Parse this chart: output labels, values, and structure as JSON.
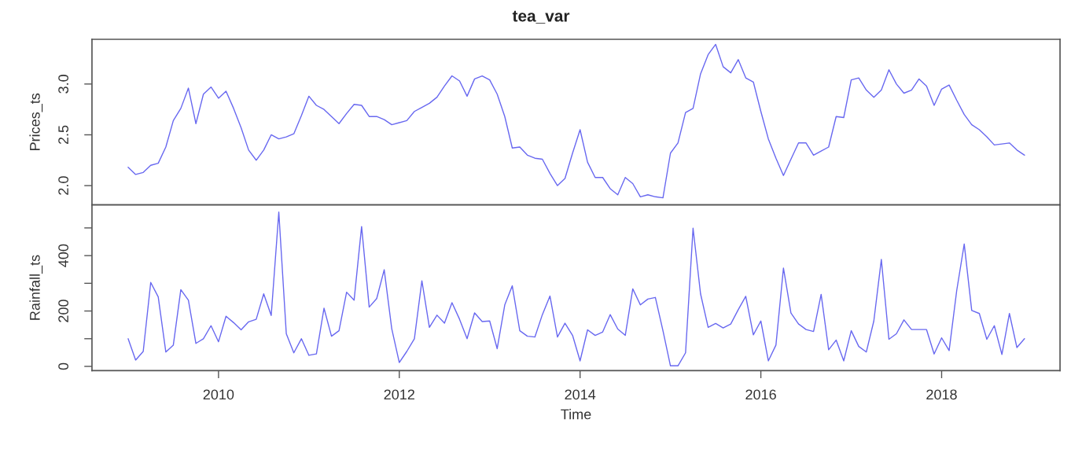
{
  "chart_data": [
    {
      "type": "line",
      "title": "tea_var",
      "ylabel": "Prices_ts",
      "tick_labels": "y",
      "x": [
        2009,
        2009.083,
        2009.167,
        2009.25,
        2009.333,
        2009.417,
        2009.5,
        2009.583,
        2009.667,
        2009.75,
        2009.833,
        2009.917,
        2010,
        2010.083,
        2010.167,
        2010.25,
        2010.333,
        2010.417,
        2010.5,
        2010.583,
        2010.667,
        2010.75,
        2010.833,
        2010.917,
        2011,
        2011.083,
        2011.167,
        2011.25,
        2011.333,
        2011.417,
        2011.5,
        2011.583,
        2011.667,
        2011.75,
        2011.833,
        2011.917,
        2012,
        2012.083,
        2012.167,
        2012.25,
        2012.333,
        2012.417,
        2012.5,
        2012.583,
        2012.667,
        2012.75,
        2012.833,
        2012.917,
        2013,
        2013.083,
        2013.167,
        2013.25,
        2013.333,
        2013.417,
        2013.5,
        2013.583,
        2013.667,
        2013.75,
        2013.833,
        2013.917,
        2014,
        2014.083,
        2014.167,
        2014.25,
        2014.333,
        2014.417,
        2014.5,
        2014.583,
        2014.667,
        2014.75,
        2014.833,
        2014.917,
        2015,
        2015.083,
        2015.167,
        2015.25,
        2015.333,
        2015.417,
        2015.5,
        2015.583,
        2015.667,
        2015.75,
        2015.833,
        2015.917,
        2016,
        2016.083,
        2016.167,
        2016.25,
        2016.333,
        2016.417,
        2016.5,
        2016.583,
        2016.667,
        2016.75,
        2016.833,
        2016.917,
        2017,
        2017.083,
        2017.167,
        2017.25,
        2017.333,
        2017.417,
        2017.5,
        2017.583,
        2017.667,
        2017.75,
        2017.833,
        2017.917,
        2018,
        2018.083,
        2018.167,
        2018.25,
        2018.333,
        2018.417,
        2018.5,
        2018.583,
        2018.667,
        2018.75,
        2018.833,
        2018.917
      ],
      "series": [
        {
          "color": "#6868f0",
          "values": [
            2.18,
            2.11,
            2.13,
            2.2,
            2.22,
            2.38,
            2.64,
            2.76,
            2.96,
            2.61,
            2.9,
            2.97,
            2.86,
            2.93,
            2.76,
            2.57,
            2.35,
            2.25,
            2.35,
            2.5,
            2.46,
            2.48,
            2.51,
            2.69,
            2.88,
            2.79,
            2.75,
            2.68,
            2.61,
            2.71,
            2.8,
            2.79,
            2.68,
            2.68,
            2.65,
            2.6,
            2.62,
            2.64,
            2.73,
            2.77,
            2.81,
            2.87,
            2.98,
            3.08,
            3.03,
            2.88,
            3.05,
            3.08,
            3.04,
            2.9,
            2.68,
            2.37,
            2.38,
            2.3,
            2.27,
            2.26,
            2.12,
            2.0,
            2.07,
            2.32,
            2.55,
            2.23,
            2.08,
            2.08,
            1.97,
            1.91,
            2.08,
            2.02,
            1.89,
            1.91,
            1.89,
            1.88,
            2.32,
            2.42,
            2.72,
            2.76,
            3.1,
            3.29,
            3.39,
            3.17,
            3.11,
            3.24,
            3.06,
            3.02,
            2.73,
            2.46,
            2.27,
            2.1,
            2.26,
            2.42,
            2.42,
            2.3,
            2.34,
            2.38,
            2.68,
            2.67,
            3.04,
            3.06,
            2.94,
            2.87,
            2.94,
            3.14,
            3.0,
            2.91,
            2.94,
            3.05,
            2.98,
            2.79,
            2.95,
            2.99,
            2.84,
            2.7,
            2.6,
            2.55,
            2.48,
            2.4,
            2.41,
            2.42,
            2.35,
            2.3
          ]
        }
      ],
      "xlim": [
        2008.6,
        2019.31
      ],
      "ylim": [
        1.81,
        3.44
      ],
      "yticks": [
        {
          "value": 2.0,
          "label": "2.0"
        },
        2.5,
        {
          "value": 3.0,
          "label": "3.0"
        }
      ]
    },
    {
      "type": "line",
      "xlabel": "Time",
      "ylabel": "Rainfall_ts",
      "x": [
        2009,
        2009.083,
        2009.167,
        2009.25,
        2009.333,
        2009.417,
        2009.5,
        2009.583,
        2009.667,
        2009.75,
        2009.833,
        2009.917,
        2010,
        2010.083,
        2010.167,
        2010.25,
        2010.333,
        2010.417,
        2010.5,
        2010.583,
        2010.667,
        2010.75,
        2010.833,
        2010.917,
        2011,
        2011.083,
        2011.167,
        2011.25,
        2011.333,
        2011.417,
        2011.5,
        2011.583,
        2011.667,
        2011.75,
        2011.833,
        2011.917,
        2012,
        2012.083,
        2012.167,
        2012.25,
        2012.333,
        2012.417,
        2012.5,
        2012.583,
        2012.667,
        2012.75,
        2012.833,
        2012.917,
        2013,
        2013.083,
        2013.167,
        2013.25,
        2013.333,
        2013.417,
        2013.5,
        2013.583,
        2013.667,
        2013.75,
        2013.833,
        2013.917,
        2014,
        2014.083,
        2014.167,
        2014.25,
        2014.333,
        2014.417,
        2014.5,
        2014.583,
        2014.667,
        2014.75,
        2014.833,
        2014.917,
        2015,
        2015.083,
        2015.167,
        2015.25,
        2015.333,
        2015.417,
        2015.5,
        2015.583,
        2015.667,
        2015.75,
        2015.833,
        2015.917,
        2016,
        2016.083,
        2016.167,
        2016.25,
        2016.333,
        2016.417,
        2016.5,
        2016.583,
        2016.667,
        2016.75,
        2016.833,
        2016.917,
        2017,
        2017.083,
        2017.167,
        2017.25,
        2017.333,
        2017.417,
        2017.5,
        2017.583,
        2017.667,
        2017.75,
        2017.833,
        2017.917,
        2018,
        2018.083,
        2018.167,
        2018.25,
        2018.333,
        2018.417,
        2018.5,
        2018.583,
        2018.667,
        2018.75,
        2018.833,
        2018.917
      ],
      "series": [
        {
          "color": "#6868f0",
          "values": [
            100,
            23,
            54,
            303,
            251,
            52,
            77,
            277,
            239,
            83,
            100,
            147,
            89,
            181,
            158,
            132,
            161,
            170,
            262,
            184,
            557,
            118,
            49,
            100,
            40,
            45,
            210,
            109,
            129,
            268,
            239,
            505,
            214,
            245,
            349,
            135,
            14,
            54,
            100,
            309,
            141,
            185,
            156,
            230,
            170,
            100,
            193,
            162,
            164,
            64,
            222,
            291,
            129,
            109,
            106,
            187,
            254,
            106,
            156,
            112,
            20,
            132,
            112,
            124,
            187,
            135,
            112,
            280,
            222,
            243,
            249,
            129,
            2,
            2,
            49,
            499,
            262,
            141,
            155,
            139,
            153,
            205,
            253,
            114,
            164,
            20,
            77,
            355,
            193,
            153,
            133,
            126,
            260,
            60,
            95,
            20,
            129,
            72,
            52,
            164,
            386,
            98,
            118,
            168,
            133,
            133,
            133,
            45,
            103,
            57,
            274,
            442,
            202,
            191,
            98,
            147,
            43,
            191,
            68,
            100
          ]
        }
      ],
      "xlim": [
        2008.6,
        2019.31
      ],
      "xticks": [
        2010,
        2012,
        2014,
        2016,
        2018
      ],
      "ylim": [
        -15,
        583
      ],
      "yticks": [
        0,
        {
          "value": 100,
          "label": null
        },
        200,
        {
          "value": 300,
          "label": null
        },
        400,
        {
          "value": 500,
          "label": null
        }
      ]
    }
  ]
}
